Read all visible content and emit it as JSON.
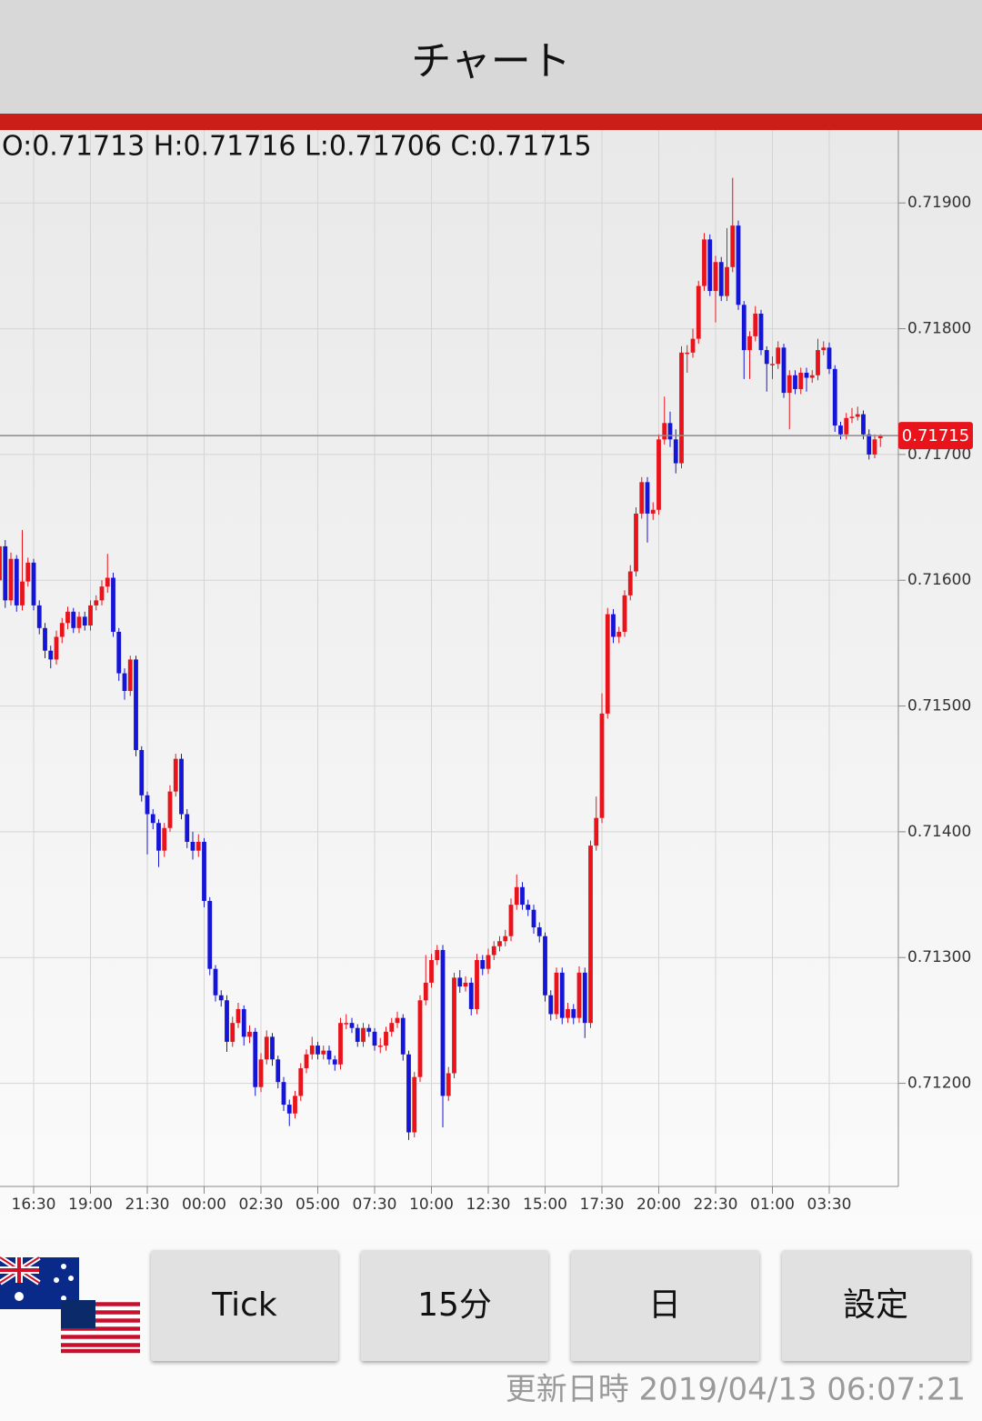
{
  "header": {
    "title": "チャート"
  },
  "chart_data": {
    "type": "candlestick",
    "ohlc_label": "O:0.71713 H:0.71716 L:0.71706 C:0.71715",
    "categories": [
      null,
      null,
      null,
      null,
      null,
      null,
      "16:30",
      null,
      null,
      null,
      null,
      null,
      null,
      null,
      null,
      null,
      "19:00",
      null,
      null,
      null,
      null,
      null,
      null,
      null,
      null,
      null,
      "21:30",
      null,
      null,
      null,
      null,
      null,
      null,
      null,
      null,
      null,
      "00:00",
      null,
      null,
      null,
      null,
      null,
      null,
      null,
      null,
      null,
      "02:30",
      null,
      null,
      null,
      null,
      null,
      null,
      null,
      null,
      null,
      "05:00",
      null,
      null,
      null,
      null,
      null,
      null,
      null,
      null,
      null,
      "07:30",
      null,
      null,
      null,
      null,
      null,
      null,
      null,
      null,
      null,
      "10:00",
      null,
      null,
      null,
      null,
      null,
      null,
      null,
      null,
      null,
      "12:30",
      null,
      null,
      null,
      null,
      null,
      null,
      null,
      null,
      null,
      "15:00",
      null,
      null,
      null,
      null,
      null,
      null,
      null,
      null,
      null,
      "17:30",
      null,
      null,
      null,
      null,
      null,
      null,
      null,
      null,
      null,
      "20:00",
      null,
      null,
      null,
      null,
      null,
      null,
      null,
      null,
      null,
      "22:30",
      null,
      null,
      null,
      null,
      null,
      null,
      null,
      null,
      null,
      "01:00",
      null,
      null,
      null,
      null,
      null,
      null,
      null,
      null,
      null,
      "03:30",
      null,
      null,
      null,
      null,
      null,
      null,
      null,
      null,
      null
    ],
    "open": [
      0.716,
      0.71627,
      0.71584,
      0.71617,
      0.7158,
      0.71599,
      0.71614,
      0.7158,
      0.71562,
      0.71544,
      0.71537,
      0.71555,
      0.71566,
      0.71575,
      0.71562,
      0.71571,
      0.71564,
      0.7158,
      0.71584,
      0.71595,
      0.71602,
      0.71559,
      0.71526,
      0.71512,
      0.71537,
      0.71465,
      0.71429,
      0.71414,
      0.71407,
      0.71385,
      0.71403,
      0.71432,
      0.71458,
      0.71414,
      0.71392,
      0.71385,
      0.71392,
      0.71345,
      0.71291,
      0.7127,
      0.71266,
      0.71233,
      0.71248,
      0.71259,
      0.71237,
      0.71241,
      0.71197,
      0.71219,
      0.71237,
      0.71219,
      0.71201,
      0.71183,
      0.71176,
      0.7119,
      0.71212,
      0.71223,
      0.7123,
      0.71223,
      0.71226,
      0.71219,
      0.71215,
      0.71248,
      0.71248,
      0.71244,
      0.71233,
      0.71244,
      0.71241,
      0.7123,
      0.7123,
      0.71241,
      0.71248,
      0.71252,
      0.71223,
      0.71161,
      0.71205,
      0.71266,
      0.7128,
      0.71298,
      0.71306,
      0.7119,
      0.71208,
      0.71284,
      0.71277,
      0.7128,
      0.71259,
      0.71298,
      0.71291,
      0.71302,
      0.71309,
      0.71313,
      0.71317,
      0.71342,
      0.71356,
      0.71342,
      0.71338,
      0.71324,
      0.71317,
      0.7127,
      0.71255,
      0.71288,
      0.71252,
      0.71259,
      0.71252,
      0.71288,
      0.71248,
      0.71389,
      0.71411,
      0.71494,
      0.71573,
      0.71555,
      0.71559,
      0.71588,
      0.71607,
      0.71653,
      0.71678,
      0.71653,
      0.71656,
      0.71712,
      0.71725,
      0.71712,
      0.71693,
      0.71781,
      0.71781,
      0.71792,
      0.71834,
      0.71871,
      0.7183,
      0.71853,
      0.71826,
      0.71849,
      0.71882,
      0.71819,
      0.71783,
      0.71794,
      0.71812,
      0.71783,
      0.71772,
      0.71772,
      0.71785,
      0.71749,
      0.71763,
      0.71752,
      0.71765,
      0.71761,
      0.71763,
      0.71783,
      0.71785,
      0.71768,
      0.71723,
      0.71716,
      0.71729,
      0.7173,
      0.71732,
      0.71716,
      0.717,
      0.71713
    ],
    "high": [
      0.71632,
      0.71632,
      0.71622,
      0.7162,
      0.7164,
      0.71618,
      0.71617,
      0.71584,
      0.71566,
      0.71548,
      0.7156,
      0.7157,
      0.71579,
      0.71578,
      0.71575,
      0.71575,
      0.71584,
      0.71588,
      0.716,
      0.71621,
      0.71606,
      0.71562,
      0.7153,
      0.7154,
      0.7154,
      0.71468,
      0.71432,
      0.71418,
      0.7141,
      0.71407,
      0.71437,
      0.71462,
      0.71462,
      0.71418,
      0.714,
      0.71398,
      0.71395,
      0.71348,
      0.71294,
      0.71274,
      0.7127,
      0.71253,
      0.71264,
      0.71262,
      0.71246,
      0.71244,
      0.71224,
      0.71242,
      0.7124,
      0.71222,
      0.71205,
      0.71187,
      0.71194,
      0.71216,
      0.71227,
      0.71237,
      0.71233,
      0.7123,
      0.7123,
      0.71222,
      0.71252,
      0.71255,
      0.71252,
      0.71247,
      0.71248,
      0.71247,
      0.71244,
      0.71236,
      0.71245,
      0.71252,
      0.71257,
      0.71255,
      0.71226,
      0.71209,
      0.7127,
      0.71302,
      0.71303,
      0.7131,
      0.7131,
      0.71213,
      0.71288,
      0.7129,
      0.71285,
      0.71284,
      0.71303,
      0.71302,
      0.71307,
      0.71313,
      0.71317,
      0.71322,
      0.71347,
      0.71366,
      0.7136,
      0.71346,
      0.71342,
      0.71328,
      0.7132,
      0.71274,
      0.71292,
      0.71292,
      0.71264,
      0.71263,
      0.71293,
      0.71292,
      0.71393,
      0.71428,
      0.7151,
      0.71578,
      0.71577,
      0.71563,
      0.71592,
      0.71612,
      0.71658,
      0.71682,
      0.71682,
      0.71662,
      0.71716,
      0.71746,
      0.71734,
      0.7172,
      0.71786,
      0.71787,
      0.718,
      0.71838,
      0.71876,
      0.71875,
      0.71858,
      0.71857,
      0.7188,
      0.7192,
      0.71886,
      0.71822,
      0.71798,
      0.71818,
      0.71815,
      0.71786,
      0.71778,
      0.7179,
      0.71788,
      0.71767,
      0.71767,
      0.71769,
      0.71769,
      0.71767,
      0.71792,
      0.7179,
      0.71789,
      0.71771,
      0.71726,
      0.71733,
      0.71737,
      0.71738,
      0.71735,
      0.7172,
      0.71716,
      0.71716
    ],
    "low": [
      0.7159,
      0.71578,
      0.7158,
      0.71575,
      0.71576,
      0.71595,
      0.71576,
      0.71557,
      0.71538,
      0.7153,
      0.71533,
      0.7155,
      0.71561,
      0.71558,
      0.71558,
      0.7156,
      0.7156,
      0.71576,
      0.7158,
      0.7159,
      0.71555,
      0.7152,
      0.71505,
      0.71508,
      0.7146,
      0.71424,
      0.71382,
      0.71402,
      0.71372,
      0.7138,
      0.714,
      0.71428,
      0.7141,
      0.71387,
      0.71378,
      0.7138,
      0.7134,
      0.71286,
      0.71265,
      0.71261,
      0.71225,
      0.71229,
      0.71244,
      0.7123,
      0.71232,
      0.7119,
      0.71193,
      0.71215,
      0.71214,
      0.71196,
      0.71178,
      0.71166,
      0.71172,
      0.71186,
      0.71208,
      0.71219,
      0.71219,
      0.71219,
      0.71215,
      0.7121,
      0.71211,
      0.71243,
      0.7124,
      0.71229,
      0.71229,
      0.71237,
      0.71226,
      0.71224,
      0.71226,
      0.71237,
      0.71244,
      0.71218,
      0.71155,
      0.71157,
      0.71201,
      0.71262,
      0.71276,
      0.71294,
      0.71165,
      0.71186,
      0.71204,
      0.71272,
      0.71273,
      0.71254,
      0.71255,
      0.71286,
      0.71287,
      0.71298,
      0.71305,
      0.71309,
      0.71313,
      0.71338,
      0.71338,
      0.71333,
      0.71319,
      0.71312,
      0.71265,
      0.7125,
      0.71251,
      0.71247,
      0.71248,
      0.71247,
      0.71248,
      0.71236,
      0.71244,
      0.71385,
      0.71407,
      0.7149,
      0.7155,
      0.7155,
      0.71555,
      0.71584,
      0.71603,
      0.71649,
      0.7163,
      0.71648,
      0.71652,
      0.71708,
      0.71706,
      0.71685,
      0.71689,
      0.71765,
      0.71777,
      0.71788,
      0.7183,
      0.71826,
      0.71805,
      0.71822,
      0.71822,
      0.71845,
      0.71815,
      0.7176,
      0.7176,
      0.7179,
      0.71779,
      0.7175,
      0.7176,
      0.71768,
      0.71745,
      0.7172,
      0.71748,
      0.71748,
      0.7175,
      0.71757,
      0.71759,
      0.71779,
      0.71764,
      0.71718,
      0.71712,
      0.71712,
      0.71725,
      0.71727,
      0.71712,
      0.71696,
      0.71697,
      0.71706
    ],
    "close": [
      0.71627,
      0.71584,
      0.71617,
      0.7158,
      0.71599,
      0.71614,
      0.7158,
      0.71562,
      0.71544,
      0.71537,
      0.71555,
      0.71566,
      0.71575,
      0.71562,
      0.71571,
      0.71564,
      0.7158,
      0.71584,
      0.71595,
      0.71602,
      0.71559,
      0.71526,
      0.71512,
      0.71537,
      0.71465,
      0.71429,
      0.71414,
      0.71407,
      0.71385,
      0.71403,
      0.71432,
      0.71458,
      0.71414,
      0.71392,
      0.71385,
      0.71392,
      0.71345,
      0.71291,
      0.7127,
      0.71266,
      0.71233,
      0.71248,
      0.71259,
      0.71237,
      0.71241,
      0.71197,
      0.71219,
      0.71237,
      0.71219,
      0.71201,
      0.71183,
      0.71176,
      0.7119,
      0.71212,
      0.71223,
      0.7123,
      0.71223,
      0.71226,
      0.71219,
      0.71215,
      0.71248,
      0.71248,
      0.71244,
      0.71233,
      0.71244,
      0.71241,
      0.7123,
      0.7123,
      0.71241,
      0.71248,
      0.71252,
      0.71223,
      0.71161,
      0.71205,
      0.71266,
      0.7128,
      0.71298,
      0.71306,
      0.7119,
      0.71208,
      0.71284,
      0.71277,
      0.7128,
      0.71259,
      0.71298,
      0.71291,
      0.71302,
      0.71309,
      0.71313,
      0.71317,
      0.71342,
      0.71356,
      0.71342,
      0.71338,
      0.71324,
      0.71317,
      0.7127,
      0.71255,
      0.71288,
      0.71252,
      0.71259,
      0.71252,
      0.71288,
      0.71248,
      0.71389,
      0.71411,
      0.71494,
      0.71573,
      0.71555,
      0.71559,
      0.71588,
      0.71607,
      0.71653,
      0.71678,
      0.71653,
      0.71656,
      0.71712,
      0.71725,
      0.71712,
      0.71693,
      0.71781,
      0.71781,
      0.71792,
      0.71834,
      0.71871,
      0.7183,
      0.71853,
      0.71826,
      0.71849,
      0.71882,
      0.71819,
      0.71783,
      0.71794,
      0.71812,
      0.71783,
      0.71772,
      0.71772,
      0.71785,
      0.71749,
      0.71763,
      0.71752,
      0.71765,
      0.71761,
      0.71763,
      0.71783,
      0.71785,
      0.71768,
      0.71723,
      0.71716,
      0.71729,
      0.7173,
      0.71732,
      0.71716,
      0.717,
      0.71712,
      0.71715
    ],
    "up_color": "#e8131b",
    "down_color": "#1515d8",
    "ylim": [
      0.71118,
      0.71958
    ],
    "yticks": [
      {
        "value": 0.712,
        "label": "0.71200"
      },
      {
        "value": 0.713,
        "label": "0.71300"
      },
      {
        "value": 0.714,
        "label": "0.71400"
      },
      {
        "value": 0.715,
        "label": "0.71500"
      },
      {
        "value": 0.716,
        "label": "0.71600"
      },
      {
        "value": 0.717,
        "label": "0.71700"
      },
      {
        "value": 0.718,
        "label": "0.71800"
      },
      {
        "value": 0.719,
        "label": "0.71900"
      }
    ],
    "grid": true,
    "last_price_line": true
  },
  "buttons": [
    "Tick",
    "15分",
    "日",
    "設定"
  ],
  "active_button": 1,
  "footer": {
    "updated": "更新日時 2019/04/13 06:07:21"
  }
}
